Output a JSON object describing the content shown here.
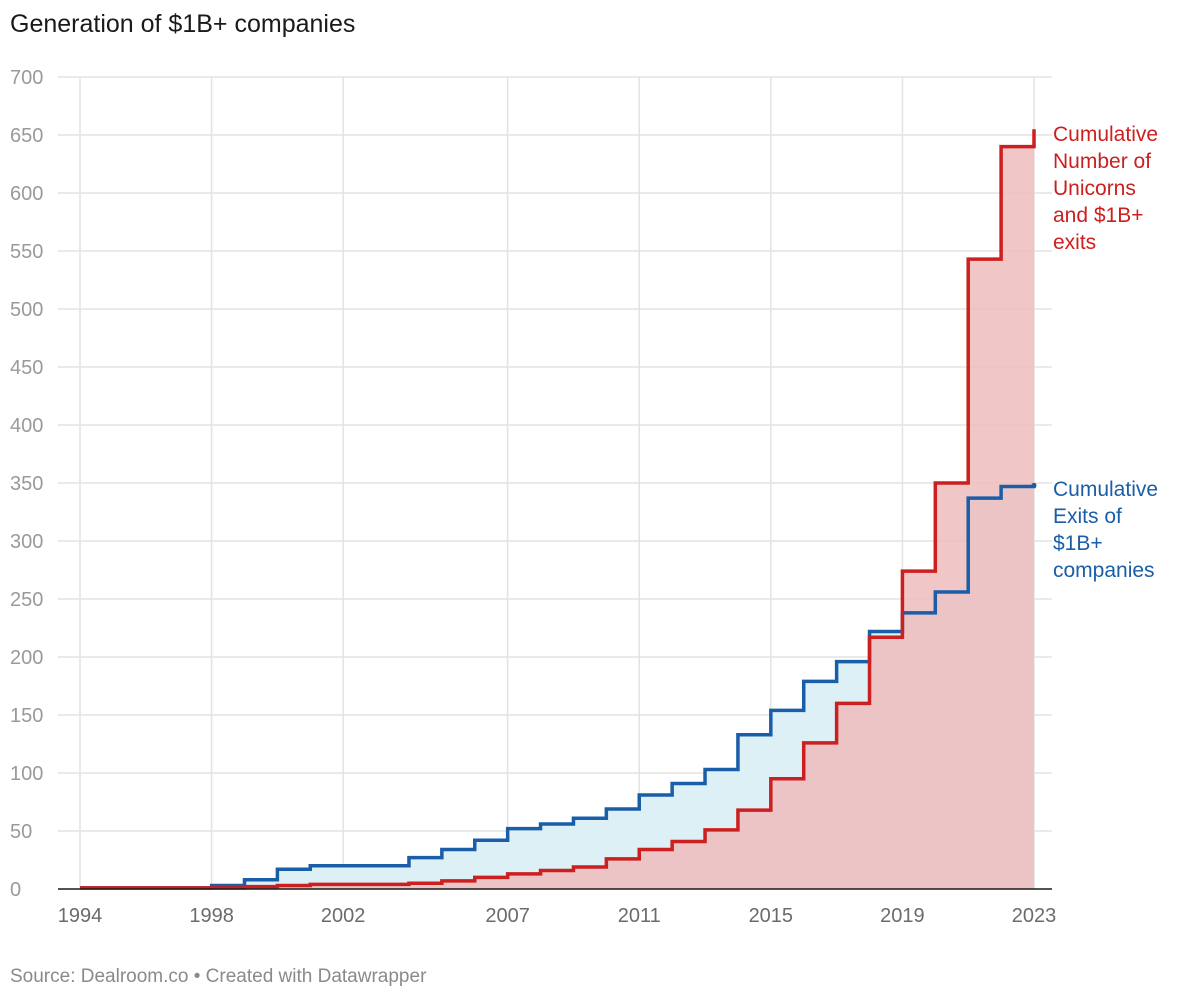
{
  "title": "Generation of $1B+ companies",
  "source": "Source: Dealroom.co • Created with Datawrapper",
  "chart_data": {
    "type": "area",
    "title": "Generation of $1B+ companies",
    "xlabel": "",
    "ylabel": "",
    "step": true,
    "xlim": [
      1994,
      2023
    ],
    "ylim": [
      0,
      700
    ],
    "y_ticks": [
      0,
      50,
      100,
      150,
      200,
      250,
      300,
      350,
      400,
      450,
      500,
      550,
      600,
      650,
      700
    ],
    "x_ticks": [
      1994,
      1998,
      2002,
      2007,
      2011,
      2015,
      2019,
      2023
    ],
    "x_tick_labels": [
      "1994",
      "1998",
      "2002",
      "2007",
      "2011",
      "2015",
      "2019",
      "2023"
    ],
    "grid": true,
    "x": [
      1994,
      1995,
      1996,
      1997,
      1998,
      1999,
      2000,
      2001,
      2002,
      2003,
      2004,
      2005,
      2006,
      2007,
      2008,
      2009,
      2010,
      2011,
      2012,
      2013,
      2014,
      2015,
      2016,
      2017,
      2018,
      2019,
      2020,
      2021,
      2022,
      2023
    ],
    "series": [
      {
        "name": "Cumulative Number of Unicorns and $1B+ exits",
        "label_lines": [
          "Cumulative",
          "Number of",
          "Unicorns",
          "and $1B+",
          "exits"
        ],
        "color": "#cc1f1f",
        "fill": "#eebcbc",
        "values": [
          1,
          1,
          1,
          1,
          1,
          2,
          3,
          4,
          4,
          4,
          5,
          7,
          10,
          13,
          16,
          19,
          26,
          34,
          41,
          51,
          68,
          95,
          126,
          160,
          217,
          274,
          350,
          543,
          640,
          655
        ]
      },
      {
        "name": "Cumulative Exits of $1B+ companies",
        "label_lines": [
          "Cumulative",
          "Exits of",
          "$1B+",
          "companies"
        ],
        "color": "#1a5ea8",
        "fill": "#ddf0f6",
        "values": [
          1,
          1,
          1,
          1,
          3,
          8,
          17,
          20,
          20,
          20,
          27,
          34,
          42,
          52,
          56,
          61,
          69,
          81,
          91,
          103,
          133,
          154,
          179,
          196,
          222,
          238,
          256,
          337,
          347,
          348
        ]
      }
    ]
  }
}
